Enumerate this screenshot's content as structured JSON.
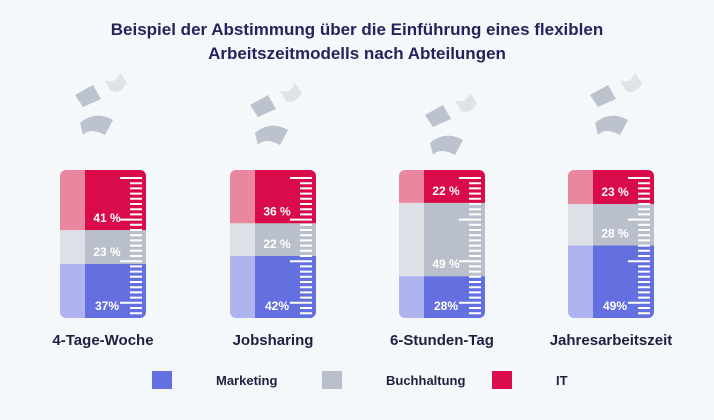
{
  "chart_data": {
    "type": "bar",
    "stacked": true,
    "title": "Beispiel der Abstimmung über die Einführung eines flexiblen Arbeitszeitmodells nach Abteilungen",
    "title_lines": [
      "Beispiel der Abstimmung über die Einführung eines flexiblen",
      "Arbeitszeitmodells nach Abteilungen"
    ],
    "categories": [
      "4-Tage-Woche",
      "Jobsharing",
      "6-Stunden-Tag",
      "Jahresarbeitszeit"
    ],
    "series": [
      {
        "name": "Marketing",
        "values": [
          37,
          42,
          28,
          49
        ],
        "labels": [
          "37%",
          "42%",
          "28%",
          "49%"
        ],
        "color": "#6570e0",
        "light_color": "#afb4ee"
      },
      {
        "name": "Buchhaltung",
        "values": [
          23,
          22,
          49,
          28
        ],
        "labels": [
          "23 %",
          "22 %",
          "49 %",
          "28 %"
        ],
        "color": "#b9c0cc",
        "light_color": "#dde1e7"
      },
      {
        "name": "IT",
        "values": [
          41,
          36,
          22,
          23
        ],
        "labels": [
          "41 %",
          "36 %",
          "22 %",
          "23 %"
        ],
        "color": "#d90b4a",
        "light_color": "#e9879f"
      }
    ],
    "legend_position": "bottom",
    "grid": false
  }
}
